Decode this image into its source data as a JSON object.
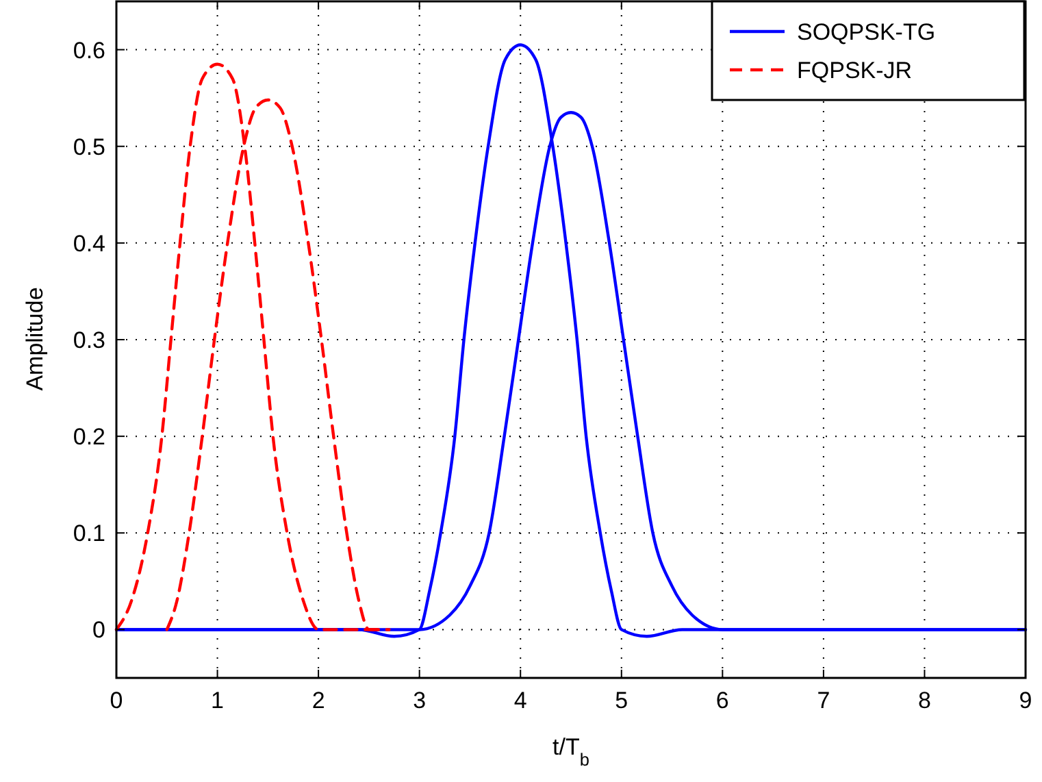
{
  "chart_data": {
    "type": "line",
    "xlabel": "t/T$_{b}$",
    "ylabel": "Amplitude",
    "xlim": [
      0,
      9
    ],
    "ylim": [
      -0.05,
      0.65
    ],
    "xticks": [
      0,
      1,
      2,
      3,
      4,
      5,
      6,
      7,
      8,
      9
    ],
    "yticks": [
      0,
      0.1,
      0.2,
      0.3,
      0.4,
      0.5,
      0.6
    ],
    "grid": true,
    "legend": "top right",
    "marker": "none",
    "series": [
      {
        "name": "SOQPSK-TG",
        "color": "#0000ff",
        "line_style": "solid",
        "x": [
          0,
          2.4,
          2.75,
          3.0,
          3.1,
          3.21,
          3.35,
          3.44,
          3.55,
          3.68,
          3.85,
          4.0,
          4.15,
          4.32,
          4.45,
          4.56,
          4.65,
          4.79,
          4.9,
          5.0,
          5.25,
          5.6,
          9
        ],
        "values": [
          0,
          0,
          -0.007,
          0,
          0.04,
          0.1,
          0.2,
          0.3,
          0.4,
          0.5,
          0.59,
          0.605,
          0.59,
          0.5,
          0.4,
          0.3,
          0.2,
          0.1,
          0.04,
          0,
          -0.007,
          0,
          0
        ]
      },
      {
        "color": "#0000ff",
        "line_style": "solid",
        "x": [
          0,
          3.0,
          3.3,
          3.5,
          3.69,
          3.84,
          3.98,
          4.12,
          4.29,
          4.4,
          4.5,
          4.6,
          4.71,
          4.88,
          5.02,
          5.16,
          5.31,
          5.5,
          5.7,
          6.0,
          9
        ],
        "values": [
          0,
          0,
          0.015,
          0.045,
          0.1,
          0.2,
          0.3,
          0.4,
          0.5,
          0.53,
          0.535,
          0.53,
          0.5,
          0.4,
          0.3,
          0.2,
          0.1,
          0.045,
          0.015,
          0,
          0
        ]
      },
      {
        "name": "FQPSK-JR",
        "color": "#ff0000",
        "line_style": "dashed",
        "x": [
          0,
          0.15,
          0.31,
          0.45,
          0.54,
          0.63,
          0.73,
          0.85,
          1.0,
          1.15,
          1.27,
          1.37,
          1.46,
          1.55,
          1.69,
          1.85,
          2.0,
          2.6
        ],
        "values": [
          0,
          0.03,
          0.1,
          0.2,
          0.3,
          0.4,
          0.5,
          0.57,
          0.585,
          0.57,
          0.5,
          0.4,
          0.3,
          0.2,
          0.1,
          0.03,
          0,
          0
        ]
      },
      {
        "color": "#ff0000",
        "line_style": "dashed",
        "x": [
          0.5,
          0.6,
          0.72,
          0.85,
          0.97,
          1.1,
          1.26,
          1.38,
          1.5,
          1.62,
          1.74,
          1.9,
          2.03,
          2.15,
          2.28,
          2.4,
          2.5,
          2.7
        ],
        "values": [
          0,
          0.03,
          0.1,
          0.2,
          0.3,
          0.4,
          0.5,
          0.54,
          0.548,
          0.54,
          0.5,
          0.4,
          0.3,
          0.2,
          0.1,
          0.03,
          0,
          0
        ]
      }
    ]
  }
}
